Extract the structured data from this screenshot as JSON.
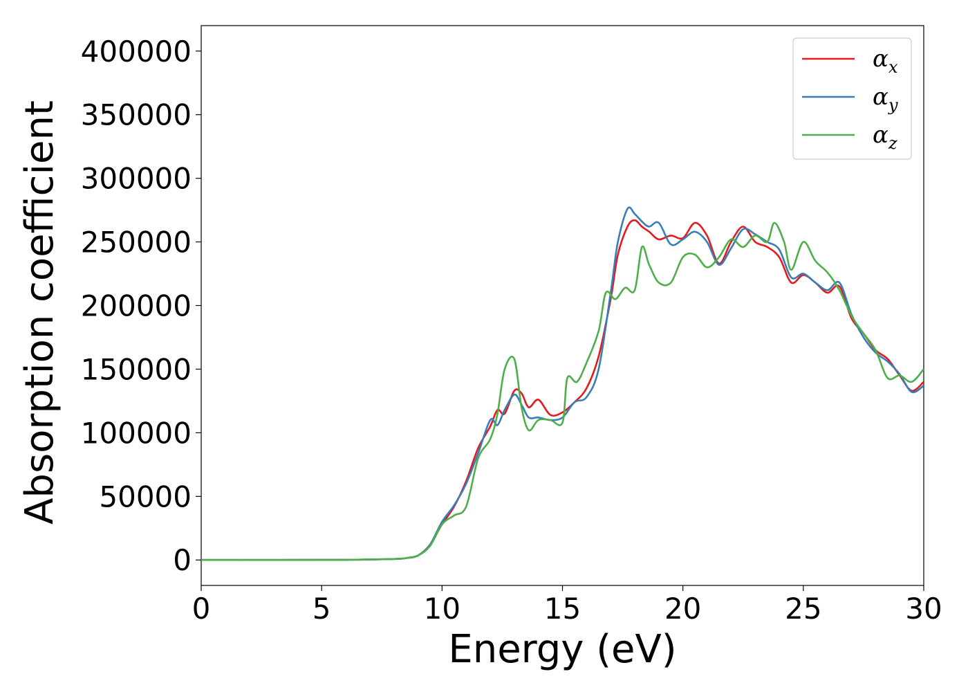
{
  "chart_data": {
    "type": "line",
    "title": "",
    "xlabel": "Energy (eV)",
    "ylabel": "Absorption coefficient",
    "xlim": [
      0,
      30
    ],
    "ylim": [
      -20000,
      420000
    ],
    "xticks": [
      0,
      5,
      10,
      15,
      20,
      25,
      30
    ],
    "yticks": [
      0,
      50000,
      100000,
      150000,
      200000,
      250000,
      300000,
      350000,
      400000
    ],
    "grid": false,
    "legend_position": "top-right",
    "series": [
      {
        "name": "αx",
        "symbol": "α",
        "subscript": "x",
        "color": "#e41a1c",
        "x": [
          0,
          6,
          8,
          8.5,
          9,
          9.5,
          10,
          10.5,
          11,
          11.5,
          12,
          12.3,
          12.6,
          13,
          13.3,
          13.6,
          14,
          14.5,
          15,
          15.5,
          16,
          16.5,
          17,
          17.3,
          17.7,
          18,
          18.3,
          18.6,
          19,
          19.5,
          20,
          20.5,
          21,
          21.5,
          22,
          22.5,
          23,
          23.5,
          24,
          24.5,
          25,
          25.5,
          26,
          26.5,
          27,
          27.5,
          28,
          28.5,
          29,
          29.5,
          30
        ],
        "y": [
          0,
          200,
          800,
          1500,
          3500,
          12000,
          28000,
          42000,
          62000,
          88000,
          105000,
          118000,
          115000,
          133000,
          131000,
          120000,
          126000,
          114000,
          116000,
          124000,
          135000,
          160000,
          205000,
          240000,
          262000,
          267000,
          262000,
          258000,
          252000,
          255000,
          253000,
          265000,
          255000,
          233000,
          250000,
          262000,
          250000,
          246000,
          238000,
          218000,
          224000,
          218000,
          210000,
          215000,
          190000,
          178000,
          165000,
          158000,
          145000,
          133000,
          140000
        ]
      },
      {
        "name": "αy",
        "symbol": "α",
        "subscript": "y",
        "color": "#377eb8",
        "x": [
          0,
          6,
          8,
          8.5,
          9,
          9.5,
          10,
          10.5,
          11,
          11.5,
          12,
          12.3,
          12.6,
          13,
          13.3,
          13.6,
          14,
          14.5,
          15,
          15.5,
          16,
          16.5,
          17,
          17.3,
          17.7,
          18,
          18.3,
          18.6,
          19,
          19.5,
          20,
          20.5,
          21,
          21.5,
          22,
          22.5,
          23,
          23.5,
          24,
          24.5,
          25,
          25.5,
          26,
          26.5,
          27,
          27.5,
          28,
          28.5,
          29,
          29.5,
          30
        ],
        "y": [
          0,
          200,
          800,
          1500,
          3500,
          12000,
          30000,
          43000,
          60000,
          84000,
          110000,
          106000,
          118000,
          130000,
          122000,
          112000,
          112000,
          110000,
          112000,
          124000,
          128000,
          150000,
          210000,
          250000,
          276000,
          272000,
          266000,
          262000,
          265000,
          248000,
          252000,
          258000,
          250000,
          232000,
          245000,
          260000,
          256000,
          250000,
          244000,
          222000,
          225000,
          218000,
          212000,
          218000,
          193000,
          175000,
          163000,
          156000,
          146000,
          132000,
          137000
        ]
      },
      {
        "name": "αz",
        "symbol": "α",
        "subscript": "z",
        "color": "#4daf4a",
        "x": [
          0,
          6,
          8,
          8.5,
          9,
          9.5,
          10,
          10.5,
          11,
          11.5,
          12,
          12.3,
          12.6,
          13,
          13.3,
          13.6,
          14,
          14.5,
          15,
          15.2,
          15.6,
          16,
          16.5,
          16.8,
          17.2,
          17.6,
          18,
          18.3,
          18.6,
          19,
          19.5,
          20,
          20.5,
          21,
          21.5,
          22,
          22.5,
          23,
          23.5,
          23.8,
          24.2,
          24.5,
          25,
          25.5,
          26,
          26.5,
          27,
          27.5,
          28,
          28.5,
          29,
          29.5,
          30
        ],
        "y": [
          0,
          200,
          800,
          1500,
          3500,
          11000,
          28000,
          35000,
          42000,
          80000,
          95000,
          115000,
          150000,
          158000,
          120000,
          102000,
          110000,
          110000,
          108000,
          143000,
          140000,
          155000,
          180000,
          210000,
          205000,
          214000,
          212000,
          246000,
          232000,
          218000,
          218000,
          238000,
          240000,
          230000,
          238000,
          252000,
          246000,
          255000,
          250000,
          265000,
          250000,
          228000,
          250000,
          235000,
          226000,
          212000,
          192000,
          178000,
          165000,
          143000,
          145000,
          140000,
          150000
        ]
      }
    ]
  }
}
